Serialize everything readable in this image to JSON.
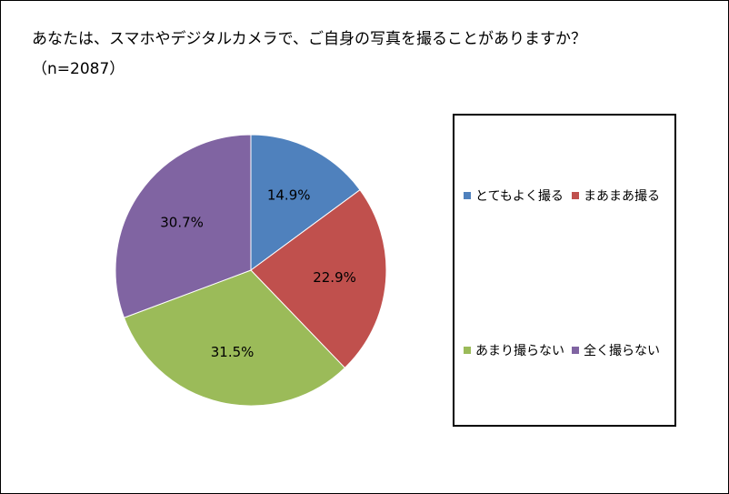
{
  "chart_data": {
    "type": "pie",
    "title": "あなたは、スマホやデジタルカメラで、ご自身の写真を撮ることがありますか？（n=2087）",
    "categories": [
      "とてもよく撮る",
      "まあまあ撮る",
      "あまり撮らない",
      "全く撮らない"
    ],
    "values": [
      14.9,
      22.9,
      31.5,
      30.7
    ],
    "data_labels": [
      "14.9%",
      "22.9%",
      "31.5%",
      "30.7%"
    ],
    "colors": [
      "#4F81BD",
      "#C0504D",
      "#9BBB59",
      "#8064A2"
    ],
    "legend_position": "right"
  }
}
